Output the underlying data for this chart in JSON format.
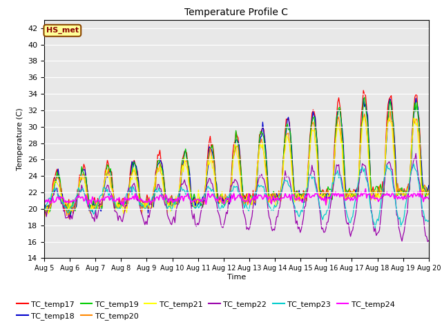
{
  "title": "Temperature Profile C",
  "xlabel": "Time",
  "ylabel": "Temperature (C)",
  "ylim": [
    14,
    43
  ],
  "yticks": [
    14,
    16,
    18,
    20,
    22,
    24,
    26,
    28,
    30,
    32,
    34,
    36,
    38,
    40,
    42
  ],
  "colors": {
    "TC_temp17": "#FF0000",
    "TC_temp18": "#0000CC",
    "TC_temp19": "#00CC00",
    "TC_temp20": "#FF8800",
    "TC_temp21": "#FFFF00",
    "TC_temp22": "#9900AA",
    "TC_temp23": "#00CCCC",
    "TC_temp24": "#FF00FF"
  },
  "annotation_text": "HS_met",
  "bg_color": "#E8E8E8",
  "n_days": 15,
  "pts_per_day": 24
}
